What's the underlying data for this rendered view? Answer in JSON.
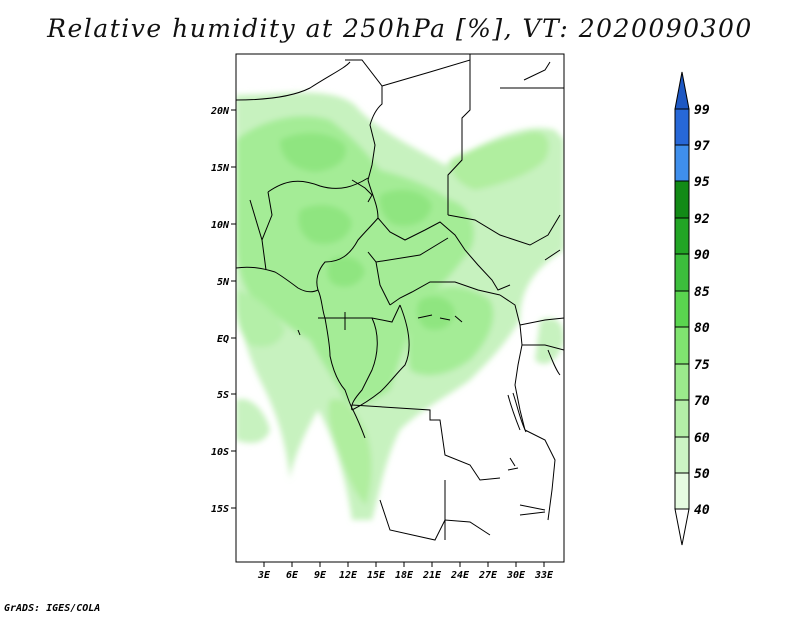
{
  "title": "Relative humidity at 250hPa [%], VT: 2020090300",
  "credit": "GrADS: IGES/COLA",
  "map": {
    "lat_ticks": [
      "20N",
      "15N",
      "10N",
      "5N",
      "EQ",
      "5S",
      "10S",
      "15S"
    ],
    "lon_ticks": [
      "3E",
      "6E",
      "9E",
      "12E",
      "15E",
      "18E",
      "21E",
      "24E",
      "27E",
      "30E",
      "33E"
    ]
  },
  "colorbar": {
    "levels": [
      {
        "label": "40",
        "color": "#ffffff"
      },
      {
        "label": "50",
        "color": "#e6fbe1"
      },
      {
        "label": "60",
        "color": "#cbf4c4"
      },
      {
        "label": "70",
        "color": "#b4efa8"
      },
      {
        "label": "75",
        "color": "#9bea8c"
      },
      {
        "label": "80",
        "color": "#80e470"
      },
      {
        "label": "85",
        "color": "#5ad54f"
      },
      {
        "label": "90",
        "color": "#3cbe3c"
      },
      {
        "label": "92",
        "color": "#22a525"
      },
      {
        "label": "95",
        "color": "#128a16"
      },
      {
        "label": "97",
        "color": "#3f8fec"
      },
      {
        "label": "99",
        "color": "#2768d8"
      }
    ],
    "top_color": "#1e58c3"
  }
}
